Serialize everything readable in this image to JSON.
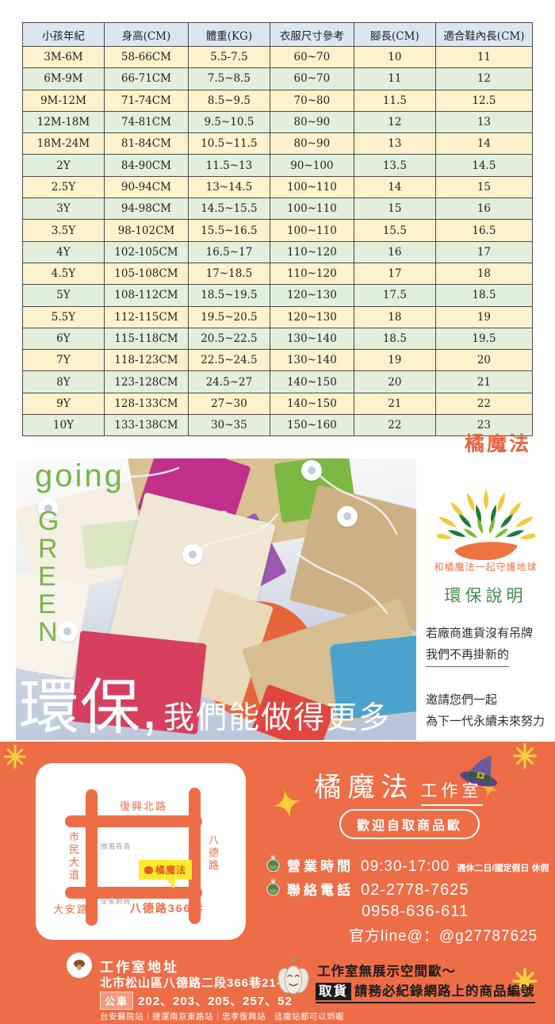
{
  "size_table": {
    "headers": [
      "小孩年紀",
      "身高(CM)",
      "體重(KG)",
      "衣服尺寸參考",
      "腳長(CM)",
      "適合鞋內長(CM)"
    ],
    "rows": [
      [
        "3M-6M",
        "58-66CM",
        "5.5-7.5",
        "60~70",
        "10",
        "11"
      ],
      [
        "6M-9M",
        "66-71CM",
        "7.5~8.5",
        "60~70",
        "11",
        "12"
      ],
      [
        "9M-12M",
        "71-74CM",
        "8.5~9.5",
        "70~80",
        "11.5",
        "12.5"
      ],
      [
        "12M-18M",
        "74-81CM",
        "9.5~10.5",
        "80~90",
        "12",
        "13"
      ],
      [
        "18M-24M",
        "81-84CM",
        "10.5~11.5",
        "80~90",
        "13",
        "14"
      ],
      [
        "2Y",
        "84-90CM",
        "11.5~13",
        "90~100",
        "13.5",
        "14.5"
      ],
      [
        "2.5Y",
        "90-94CM",
        "13~14.5",
        "100~110",
        "14",
        "15"
      ],
      [
        "3Y",
        "94-98CM",
        "14.5~15.5",
        "100~110",
        "15",
        "16"
      ],
      [
        "3.5Y",
        "98-102CM",
        "15.5~16.5",
        "100~110",
        "15.5",
        "16.5"
      ],
      [
        "4Y",
        "102-105CM",
        "16.5~17",
        "110~120",
        "16",
        "17"
      ],
      [
        "4.5Y",
        "105-108CM",
        "17~18.5",
        "110~120",
        "17",
        "18"
      ],
      [
        "5Y",
        "108-112CM",
        "18.5~19.5",
        "120~130",
        "17.5",
        "18.5"
      ],
      [
        "5.5Y",
        "112-115CM",
        "19.5~20.5",
        "120~130",
        "18",
        "19"
      ],
      [
        "6Y",
        "115-118CM",
        "20.5~22.5",
        "130~140",
        "18.5",
        "19.5"
      ],
      [
        "7Y",
        "118-123CM",
        "22.5~24.5",
        "130~140",
        "19",
        "20"
      ],
      [
        "8Y",
        "123-128CM",
        "24.5~27",
        "140~150",
        "20",
        "21"
      ],
      [
        "9Y",
        "128-133CM",
        "27~30",
        "140~150",
        "21",
        "22"
      ],
      [
        "10Y",
        "133-138CM",
        "30~35",
        "150~160",
        "22",
        "23"
      ]
    ]
  },
  "brand": "橘魔法",
  "green_section": {
    "going": "going",
    "green_letters": [
      "G",
      "R",
      "E",
      "E",
      "N"
    ],
    "headline_large": "環保,",
    "headline_small": "我們能做得更多",
    "tree_tagline": "和橘魔法一起守護地球",
    "eco_title": "環保說明",
    "eco_line1": "若廠商進貨沒有吊牌",
    "eco_line2": "我們不再掛新的",
    "invite_line1": "邀請您們一起",
    "invite_line2": "為下一代永續未來努力"
  },
  "footer": {
    "studio_title": "橘魔法",
    "studio_suffix": "工作室",
    "pickup_pill": "歡迎自取商品歐",
    "hours_label": "營業時間",
    "hours_value": "09:30-17:00",
    "hours_note": "週休二日/國定假日 休假",
    "phone_label": "聯絡電話",
    "phone1": "02-2778-7625",
    "phone2": "0958-636-611",
    "line_id": "官方line@：@g27787625",
    "address_title": "工作室地址",
    "address": "北市松山區八德路二段366巷21-1號",
    "bus_label": "公車",
    "bus_routes": "202、203、205、257、52",
    "stations": "台安醫院站｜捷運南京東路站｜忠孝復興站　這魔站都可以到喔",
    "notice1": "工作室無展示空間歐～",
    "notice2_tag": "取貨",
    "notice2_text": "請務必紀錄網路上的商品編號",
    "map": {
      "road_top": "復興北路",
      "road_left": "市民大道",
      "road_right": "八德路",
      "road_bottom_left": "大安路",
      "road_bottom": "八德路366巷",
      "landmark1": "微風百貨",
      "landmark2": "全家超商",
      "marker": "橘魔法"
    }
  },
  "colors": {
    "footer_orange": "#ED6D47",
    "brand_orange": "#E8653F",
    "going_green": "#76B548",
    "eco_green": "#41894E",
    "tagline_orange": "#EE7341",
    "callout_yellow": "#FFE92E",
    "star_yellow": "#F7CF3C",
    "table_header_blue": "#DCE6F1",
    "table_row_yellow": "#FDF2CC",
    "table_row_green": "#E3EFDA"
  }
}
